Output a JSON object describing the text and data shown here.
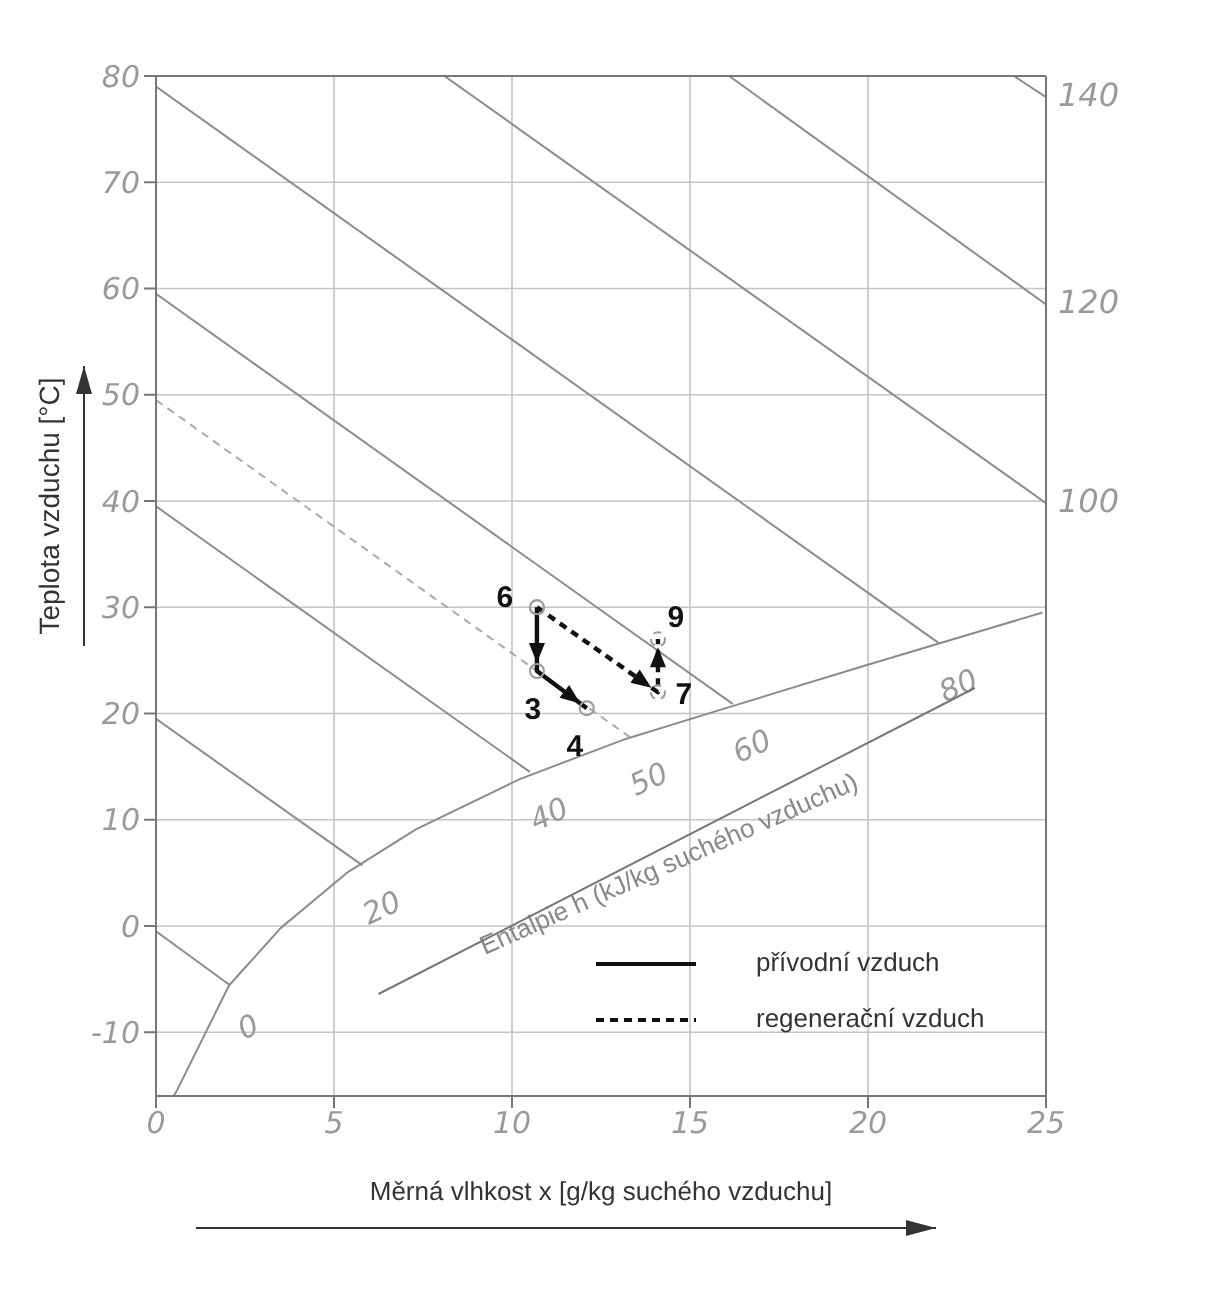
{
  "chart_data": {
    "type": "line",
    "xlabel": "Měrná vlhkost x [g/kg suchého vzduchu]",
    "ylabel": "Teplota vzduchu [°C]",
    "xlim": [
      0,
      25
    ],
    "xticks": [
      0,
      5,
      10,
      15,
      20,
      25
    ],
    "ylim": [
      -16,
      80
    ],
    "yticks": [
      -10,
      0,
      10,
      20,
      30,
      40,
      50,
      60,
      70,
      80
    ],
    "grid": true,
    "legend": "bottom right",
    "series": [
      {
        "color": "#8c8c8c",
        "x": [
          0.5,
          0.6,
          2.05,
          3.5,
          5.4,
          7.3,
          10.2,
          13.1,
          16.1,
          19.9,
          24.9
        ],
        "values": [
          -16,
          -15.4,
          -5.6,
          -0.2,
          5.1,
          9.1,
          13.8,
          17.5,
          20.6,
          24.5,
          29.5
        ]
      },
      {
        "color": "#8c8c8c",
        "x": [
          0,
          2.05
        ],
        "values": [
          -0.5,
          -5.5
        ]
      },
      {
        "color": "#8c8c8c",
        "x": [
          0,
          5.8
        ],
        "values": [
          19.5,
          5.7
        ]
      },
      {
        "color": "#8c8c8c",
        "x": [
          0,
          10.5
        ],
        "values": [
          39.5,
          14.5
        ]
      },
      {
        "color": "#aaaaaa",
        "line_style": "dashed",
        "x": [
          0,
          13.3
        ],
        "values": [
          49.5,
          17.8
        ]
      },
      {
        "color": "#8c8c8c",
        "x": [
          0,
          16.2
        ],
        "values": [
          59.5,
          20.9
        ]
      },
      {
        "color": "#8c8c8c",
        "x": [
          0,
          22
        ],
        "values": [
          79,
          26.6
        ]
      },
      {
        "color": "#8c8c8c",
        "x": [
          8.1,
          25
        ],
        "values": [
          80,
          39.8
        ]
      },
      {
        "color": "#8c8c8c",
        "x": [
          16.1,
          25
        ],
        "values": [
          80,
          58.5
        ]
      },
      {
        "color": "#8c8c8c",
        "x": [
          24.1,
          25
        ],
        "values": [
          80,
          78
        ]
      },
      {
        "name": "přívodní vzduch",
        "color": "#111111",
        "x": [
          10.7,
          10.7,
          12.1
        ],
        "values": [
          30,
          24,
          20.5
        ],
        "marker": "circle"
      },
      {
        "name": "regenerační vzduch",
        "color": "#111111",
        "line_style": "dashed",
        "x": [
          10.7,
          14.1,
          14.1
        ],
        "values": [
          30,
          22,
          27
        ],
        "marker": "circle"
      }
    ],
    "annotations": [
      {
        "text": "6",
        "x": 10.7,
        "y": 30
      },
      {
        "text": "3",
        "x": 10.7,
        "y": 24
      },
      {
        "text": "4",
        "x": 12.1,
        "y": 20.5
      },
      {
        "text": "7",
        "x": 14.1,
        "y": 22
      },
      {
        "text": "9",
        "x": 14.1,
        "y": 27
      },
      {
        "text": "0",
        "x": 2.05,
        "y": -5.5
      },
      {
        "text": "20",
        "x": 5.8,
        "y": 5.7
      },
      {
        "text": "40",
        "x": 10.5,
        "y": 14.5
      },
      {
        "text": "50",
        "x": 13.3,
        "y": 17.8
      },
      {
        "text": "60",
        "x": 16.2,
        "y": 20.9
      },
      {
        "text": "80",
        "x": 22,
        "y": 26.6
      },
      {
        "text": "140",
        "x": 25,
        "y": 78
      },
      {
        "text": "120",
        "x": 25,
        "y": 58.5
      },
      {
        "text": "100",
        "x": 25,
        "y": 39.8
      },
      "Entalpie h (kJ/kg suchého vzduchu)"
    ]
  }
}
